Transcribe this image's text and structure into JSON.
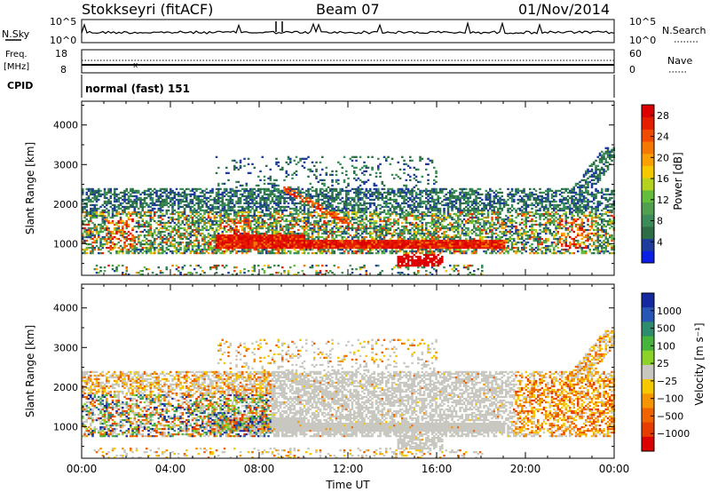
{
  "header": {
    "station": "Stokkseyri (fitACF)",
    "beam": "Beam 07",
    "date": "01/Nov/2014"
  },
  "noise_panel": {
    "left_label": "N.Sky",
    "right_label": "N.Search",
    "left_ticks": [
      "10^5",
      "10^0"
    ],
    "right_ticks": [
      "10^5",
      "10^0"
    ]
  },
  "freq_panel": {
    "left_label_1": "Freq.",
    "left_label_2": "[MHz]",
    "right_label": "Nave",
    "left_ticks": [
      "18",
      "8"
    ],
    "right_ticks": [
      "60",
      "0"
    ]
  },
  "cpid": {
    "label": "CPID",
    "value": "normal (fast) 151"
  },
  "colors": {
    "power": [
      "#0a1ee6",
      "#1e3c9b",
      "#2d6e46",
      "#3c8c5a",
      "#50a050",
      "#64be3c",
      "#b4d21e",
      "#f5c800",
      "#faa000",
      "#f57800",
      "#f04b00",
      "#e61e00",
      "#dc0000"
    ],
    "velocity": [
      "#1428a0",
      "#2856b4",
      "#2d8c6e",
      "#46b43c",
      "#8cd228",
      "#c8c8c0",
      "#f5c800",
      "#f59600",
      "#f06400",
      "#e63c00",
      "#dc0000"
    ]
  },
  "chart_data": [
    {
      "type": "heatmap",
      "title": "Power",
      "ylabel": "Slant Range [km]",
      "ylim": [
        200,
        4600
      ],
      "yticks": [
        "1000",
        "2000",
        "3000",
        "4000"
      ],
      "xticks": [
        "00:00",
        "04:00",
        "08:00",
        "12:00",
        "16:00",
        "20:00",
        "00:00"
      ],
      "xlim_hours": [
        0,
        24
      ],
      "colorbar_label": "Power [dB]",
      "colorbar_ticks": [
        "4",
        "8",
        "12",
        "16",
        "20",
        "24",
        "28"
      ],
      "colorbar_range": [
        0,
        30
      ]
    },
    {
      "type": "heatmap",
      "title": "Velocity",
      "ylabel": "Slant Range [km]",
      "xlabel": "Time UT",
      "ylim": [
        200,
        4600
      ],
      "yticks": [
        "1000",
        "2000",
        "3000",
        "4000"
      ],
      "xticks": [
        "00:00",
        "04:00",
        "08:00",
        "12:00",
        "16:00",
        "20:00",
        "00:00"
      ],
      "xlim_hours": [
        0,
        24
      ],
      "colorbar_label": "Velocity [m s⁻¹]",
      "colorbar_ticks": [
        "1000",
        "500",
        "100",
        "25",
        "−25",
        "−100",
        "−500",
        "−1000"
      ]
    }
  ]
}
